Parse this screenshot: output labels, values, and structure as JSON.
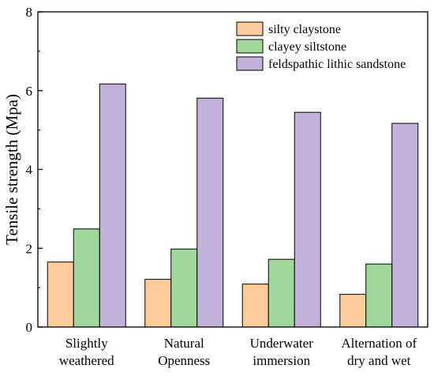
{
  "chart_data": {
    "type": "bar",
    "title": "",
    "xlabel": "",
    "ylabel": "Tensile strength (Mpa)",
    "ylim": [
      0,
      8
    ],
    "yticks": [
      "0",
      "2",
      "4",
      "6",
      "8"
    ],
    "grid": false,
    "legend_position": "top-right",
    "categories": [
      [
        "Slightly",
        "weathered"
      ],
      [
        "Natural",
        "Openness"
      ],
      [
        "Underwater",
        "immersion"
      ],
      [
        "Alternation of",
        "dry and wet"
      ]
    ],
    "series": [
      {
        "name": "silty claystone",
        "color": "#fdcc9a",
        "values": [
          1.65,
          1.21,
          1.09,
          0.83
        ]
      },
      {
        "name": "clayey siltstone",
        "color": "#9fd89a",
        "values": [
          2.49,
          1.98,
          1.72,
          1.6
        ]
      },
      {
        "name": "feldspathic lithic sandstone",
        "color": "#c3b1d9",
        "values": [
          6.17,
          5.81,
          5.45,
          5.17
        ]
      }
    ]
  }
}
